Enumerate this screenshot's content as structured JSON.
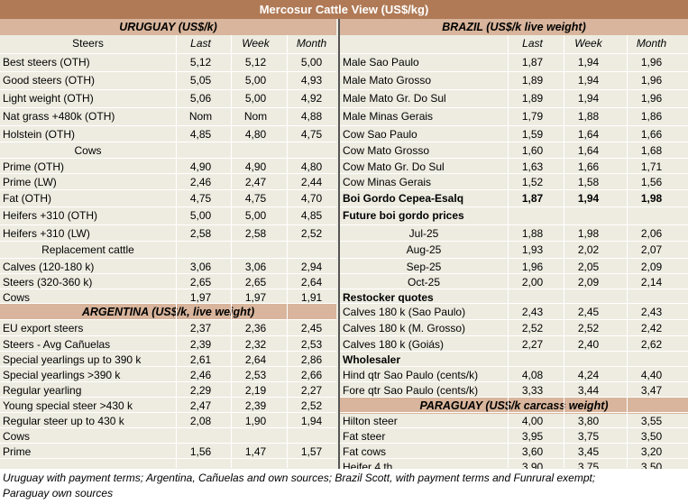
{
  "title": "Mercosur Cattle View (US$/kg)",
  "uruguay": {
    "header": "URUGUAY (US$/k)",
    "col_last": "Last",
    "col_week": "Week",
    "col_month": "Month",
    "steers_label": "Steers",
    "steers": [
      {
        "name": "Best steers (OTH)",
        "last": "5,12",
        "week": "5,12",
        "month": "5,00"
      },
      {
        "name": "Good steers (OTH)",
        "last": "5,05",
        "week": "5,00",
        "month": "4,93"
      },
      {
        "name": "Light weight (OTH)",
        "last": "5,06",
        "week": "5,00",
        "month": "4,92"
      },
      {
        "name": "Nat grass +480k (OTH)",
        "last": "Nom",
        "week": "Nom",
        "month": "4,88"
      },
      {
        "name": "Holstein (OTH)",
        "last": "4,85",
        "week": "4,80",
        "month": "4,75"
      }
    ],
    "cows_label": "Cows",
    "cows": [
      {
        "name": "Prime (OTH)",
        "last": "4,90",
        "week": "4,90",
        "month": "4,80"
      },
      {
        "name": "Prime (LW)",
        "last": "2,46",
        "week": "2,47",
        "month": "2,44"
      },
      {
        "name": "Fat (OTH)",
        "last": "4,75",
        "week": "4,75",
        "month": "4,70"
      },
      {
        "name": "Heifers +310 (OTH)",
        "last": "5,00",
        "week": "5,00",
        "month": "4,85"
      },
      {
        "name": "Heifers +310 (LW)",
        "last": "2,58",
        "week": "2,58",
        "month": "2,52"
      }
    ],
    "replacement_label": "Replacement cattle",
    "replacement": [
      {
        "name": "Calves (120-180 k)",
        "last": "3,06",
        "week": "3,06",
        "month": "2,94"
      },
      {
        "name": "Steers (320-360 k)",
        "last": "2,65",
        "week": "2,65",
        "month": "2,64"
      },
      {
        "name": "Cows",
        "last": "1,97",
        "week": "1,97",
        "month": "1,91"
      }
    ]
  },
  "argentina": {
    "header": "ARGENTINA (US$/k, live weight)",
    "rows": [
      {
        "name": "EU export steers",
        "last": "2,37",
        "week": "2,36",
        "month": "2,45"
      },
      {
        "name": "Steers - Avg Cañuelas",
        "last": "2,39",
        "week": "2,32",
        "month": "2,53"
      },
      {
        "name": "Special yearlings up to 390 k",
        "last": "2,61",
        "week": "2,64",
        "month": "2,86"
      },
      {
        "name": "Special yearlings >390 k",
        "last": "2,46",
        "week": "2,53",
        "month": "2,66"
      },
      {
        "name": "Regular yearling",
        "last": "2,29",
        "week": "2,19",
        "month": "2,27"
      },
      {
        "name": "Young special steer >430 k",
        "last": "2,47",
        "week": "2,39",
        "month": "2,52"
      },
      {
        "name": "Regular steer up to 430 k",
        "last": "2,08",
        "week": "1,90",
        "month": "1,94"
      },
      {
        "name": "Cows",
        "last": "",
        "week": "",
        "month": ""
      },
      {
        "name": "Prime",
        "last": "1,56",
        "week": "1,47",
        "month": "1,57"
      }
    ]
  },
  "brazil": {
    "header": "BRAZIL  (US$/k live weight)",
    "col_last": "Last",
    "col_week": "Week",
    "col_month": "Month",
    "rows": [
      {
        "name": "Male Sao Paulo",
        "last": "1,87",
        "week": "1,94",
        "month": "1,96"
      },
      {
        "name": "Male Mato Grosso",
        "last": "1,89",
        "week": "1,94",
        "month": "1,96"
      },
      {
        "name": "Male Mato Gr. Do Sul",
        "last": "1,89",
        "week": "1,94",
        "month": "1,96"
      },
      {
        "name": "Male Minas Gerais",
        "last": "1,79",
        "week": "1,88",
        "month": "1,86"
      },
      {
        "name": "Cow Sao Paulo",
        "last": "1,59",
        "week": "1,64",
        "month": "1,66"
      },
      {
        "name": "Cow Mato Grosso",
        "last": "1,60",
        "week": "1,64",
        "month": "1,68"
      },
      {
        "name": "Cow Mato Gr. Do Sul",
        "last": "1,63",
        "week": "1,66",
        "month": "1,71"
      },
      {
        "name": "Cow Minas Gerais",
        "last": "1,52",
        "week": "1,58",
        "month": "1,56"
      }
    ],
    "boi": {
      "name": "Boi Gordo Cepea-Esalq",
      "last": "1,87",
      "week": "1,94",
      "month": "1,98"
    },
    "future_label": "Future boi gordo prices",
    "future": [
      {
        "name": "Jul-25",
        "last": "1,88",
        "week": "1,98",
        "month": "2,06"
      },
      {
        "name": "Aug-25",
        "last": "1,93",
        "week": "2,02",
        "month": "2,07"
      },
      {
        "name": "Sep-25",
        "last": "1,96",
        "week": "2,05",
        "month": "2,09"
      },
      {
        "name": "Oct-25",
        "last": "2,00",
        "week": "2,09",
        "month": "2,14"
      }
    ],
    "restocker_label": "Restocker quotes",
    "restocker": [
      {
        "name": "Calves 180 k (Sao Paulo)",
        "last": "2,43",
        "week": "2,45",
        "month": "2,43"
      },
      {
        "name": "Calves 180 k (M. Grosso)",
        "last": "2,52",
        "week": "2,52",
        "month": "2,42"
      },
      {
        "name": "Calves 180 k (Goiás)",
        "last": "2,27",
        "week": "2,40",
        "month": "2,62"
      }
    ],
    "wholesaler_label": "Wholesaler",
    "wholesaler": [
      {
        "name": "Hind qtr Sao Paulo (cents/k)",
        "last": "4,08",
        "week": "4,24",
        "month": "4,40"
      },
      {
        "name": "Fore qtr Sao Paulo (cents/k)",
        "last": "3,33",
        "week": "3,44",
        "month": "3,47"
      }
    ]
  },
  "paraguay": {
    "header": "PARAGUAY  (US$/k carcass weight)",
    "rows": [
      {
        "name": "Hilton steer",
        "last": "4,00",
        "week": "3,80",
        "month": "3,55"
      },
      {
        "name": "Fat steer",
        "last": "3,95",
        "week": "3,75",
        "month": "3,50"
      },
      {
        "name": "Fat cows",
        "last": "3,60",
        "week": "3,45",
        "month": "3,20"
      },
      {
        "name": "Heifer 4 th",
        "last": "3,90",
        "week": "3,75",
        "month": "3,50"
      }
    ]
  },
  "footer": {
    "line1": "Uruguay with payment terms; Argentina, Cañuelas and own sources; Brazil Scott, with payment terms and Funrural exempt;",
    "line2": "Paraguay own sources"
  }
}
